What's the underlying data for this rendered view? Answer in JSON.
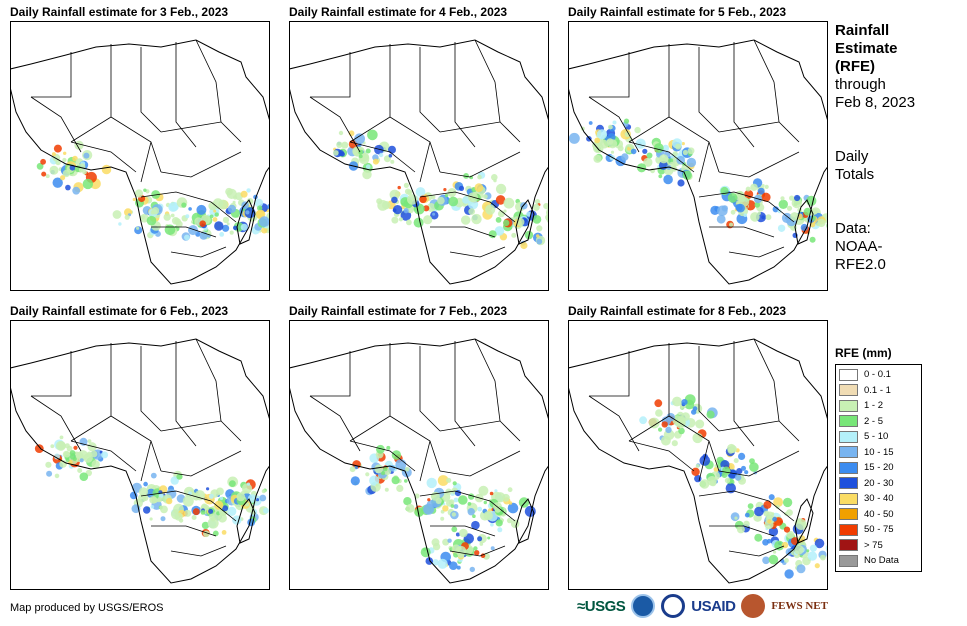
{
  "panels": [
    {
      "title": "Daily Rainfall estimate for 3 Feb., 2023"
    },
    {
      "title": "Daily Rainfall estimate for 4 Feb., 2023"
    },
    {
      "title": "Daily Rainfall estimate for 5 Feb., 2023"
    },
    {
      "title": "Daily Rainfall estimate for 6 Feb., 2023"
    },
    {
      "title": "Daily Rainfall estimate for 7 Feb., 2023"
    },
    {
      "title": "Daily Rainfall estimate for 8 Feb., 2023"
    }
  ],
  "sidebar": {
    "title_line1": "Rainfall",
    "title_line2": "Estimate",
    "title_line3": "(RFE)",
    "through_line1": "through",
    "through_line2": "Feb 8, 2023",
    "daily_line1": "Daily",
    "daily_line2": "Totals",
    "data_line1": "Data:",
    "data_line2": "NOAA-",
    "data_line3": "RFE2.0"
  },
  "legend": {
    "title": "RFE (mm)",
    "items": [
      {
        "label": "0 - 0.1",
        "color": "#ffffff"
      },
      {
        "label": "0.1 - 1",
        "color": "#f0dcb4"
      },
      {
        "label": "1 - 2",
        "color": "#c8f0b4"
      },
      {
        "label": "2 - 5",
        "color": "#78e678"
      },
      {
        "label": "5 - 10",
        "color": "#b4f0fa"
      },
      {
        "label": "10 - 15",
        "color": "#78b4f0"
      },
      {
        "label": "15 - 20",
        "color": "#3c8cf0"
      },
      {
        "label": "20 - 30",
        "color": "#1e50dc"
      },
      {
        "label": "30 - 40",
        "color": "#fadc64"
      },
      {
        "label": "40 - 50",
        "color": "#f0a000"
      },
      {
        "label": "50 - 75",
        "color": "#f03c00"
      },
      {
        "label": "> 75",
        "color": "#a01414"
      },
      {
        "label": "No Data",
        "color": "#999999"
      }
    ]
  },
  "credit": "Map produced by USGS/EROS",
  "logos": {
    "usgs": "≈USGS",
    "usaid": "USAID",
    "fews": "FEWS NET"
  }
}
